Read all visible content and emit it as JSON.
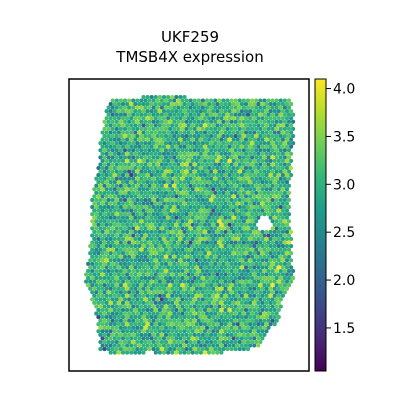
{
  "chart_data": {
    "type": "spatial-scatter",
    "title_line1": "UKF259",
    "title_line2": "TMSB4X expression",
    "xlabel": "",
    "ylabel": "",
    "colorbar": {
      "colormap": "viridis",
      "vmin": 1.05,
      "vmax": 4.1,
      "ticks": [
        {
          "value": 1.5,
          "label": "1.5"
        },
        {
          "value": 2.0,
          "label": "2.0"
        },
        {
          "value": 2.5,
          "label": "2.5"
        },
        {
          "value": 3.0,
          "label": "3.0"
        },
        {
          "value": 3.5,
          "label": "3.5"
        },
        {
          "value": 4.0,
          "label": "4.0"
        }
      ]
    },
    "value_distribution": {
      "typical": 3.0,
      "spread": 0.35
    },
    "grid": false,
    "legend": "colorbar-right"
  },
  "colors": {
    "viridis": [
      "#440154",
      "#482878",
      "#3e4989",
      "#31688e",
      "#26828e",
      "#1f9e89",
      "#35b779",
      "#6ece58",
      "#b5de2b",
      "#fde725"
    ]
  }
}
